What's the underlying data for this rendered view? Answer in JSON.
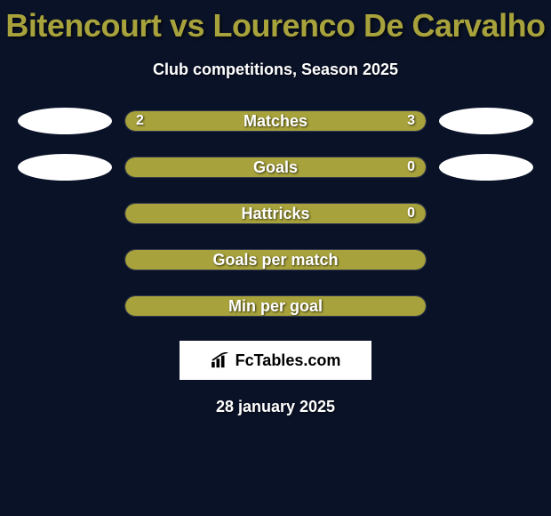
{
  "background_color": "#0a1228",
  "title": {
    "text": "Bitencourt vs Lourenco De Carvalho",
    "color": "#a7a23b",
    "fontsize": 36,
    "fontweight": 900
  },
  "subtitle": {
    "text": "Club competitions, Season 2025",
    "color": "#ffffff",
    "fontsize": 18
  },
  "bars": {
    "track_width": 340,
    "track_height": 24,
    "track_radius": 12,
    "track_bg": "rgba(255,255,255,0.03)",
    "fill_color": "#a7a23b",
    "neutral_fill": "#a7a23b",
    "label_color": "#ffffff",
    "label_fontsize": 18,
    "value_fontsize": 16
  },
  "side_ellipse": {
    "width": 106,
    "height": 30,
    "color": "#ffffff"
  },
  "rows": [
    {
      "label": "Matches",
      "left_value": "2",
      "right_value": "3",
      "left_pct": 40,
      "right_pct": 60,
      "show_side_ellipses": true,
      "show_values": true
    },
    {
      "label": "Goals",
      "left_value": "",
      "right_value": "0",
      "left_pct": 100,
      "right_pct": 0,
      "show_side_ellipses": true,
      "show_values": true,
      "full_fill": true
    },
    {
      "label": "Hattricks",
      "left_value": "",
      "right_value": "0",
      "left_pct": 100,
      "right_pct": 0,
      "show_side_ellipses": false,
      "show_values": true,
      "full_fill": true
    },
    {
      "label": "Goals per match",
      "left_value": "",
      "right_value": "",
      "left_pct": 100,
      "right_pct": 0,
      "show_side_ellipses": false,
      "show_values": false,
      "full_fill": true
    },
    {
      "label": "Min per goal",
      "left_value": "",
      "right_value": "",
      "left_pct": 100,
      "right_pct": 0,
      "show_side_ellipses": false,
      "show_values": false,
      "full_fill": true
    }
  ],
  "watermark": {
    "text": "FcTables.com",
    "box_bg": "#ffffff",
    "text_color": "#000000",
    "fontsize": 18
  },
  "date": {
    "text": "28 january 2025",
    "color": "#ffffff",
    "fontsize": 18
  }
}
